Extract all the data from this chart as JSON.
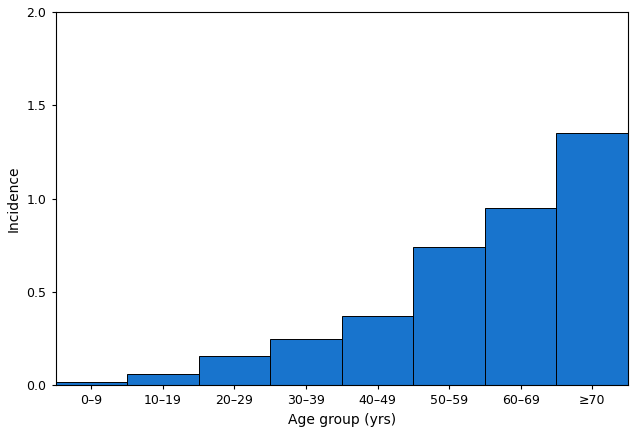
{
  "categories": [
    "0–9",
    "10–19",
    "20–29",
    "30–39",
    "40–49",
    "50–59",
    "60–69",
    "≥70"
  ],
  "values": [
    0.02,
    0.06,
    0.16,
    0.25,
    0.37,
    0.74,
    0.95,
    1.35
  ],
  "bar_color": "#1874CD",
  "bar_edge_color": "#000000",
  "bar_edge_width": 0.7,
  "xlabel": "Age group (yrs)",
  "ylabel": "Incidence",
  "ylim": [
    0,
    2.0
  ],
  "yticks": [
    0.0,
    0.5,
    1.0,
    1.5,
    2.0
  ],
  "xlabel_fontsize": 10,
  "ylabel_fontsize": 10,
  "tick_fontsize": 9,
  "background_color": "#ffffff",
  "figure_width": 6.35,
  "figure_height": 4.34,
  "dpi": 100
}
